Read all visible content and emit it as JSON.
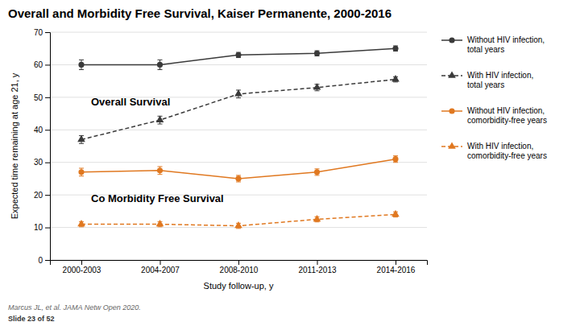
{
  "chart_data": {
    "type": "line",
    "title": "Overall and Morbidity Free Survival, Kaiser Permanente, 2000-2016",
    "xlabel": "Study follow-up, y",
    "ylabel": "Expected time remaining at age 21, y",
    "categories": [
      "2000-2003",
      "2004-2007",
      "2008-2010",
      "2011-2013",
      "2014-2016"
    ],
    "ylim": [
      0,
      70
    ],
    "yticks": [
      0,
      10,
      20,
      30,
      40,
      50,
      60,
      70
    ],
    "grid": true,
    "legend": "right",
    "series": [
      {
        "name": "Without HIV infection,\ntotal years",
        "color": "#3a3a3a",
        "marker": "circle",
        "line_style": "solid",
        "values": [
          60,
          60,
          63,
          63.5,
          65
        ],
        "yerr_lo": [
          1.5,
          1.5,
          0.8,
          0.8,
          0.8
        ],
        "yerr_hi": [
          1.5,
          1.5,
          0.8,
          0.8,
          0.8
        ]
      },
      {
        "name": "With HIV infection,\ntotal years",
        "color": "#3a3a3a",
        "marker": "triangle",
        "line_style": "dashed",
        "values": [
          37,
          43,
          51,
          53,
          55.5
        ],
        "yerr_lo": [
          1.2,
          1.2,
          1.2,
          1.0,
          0.8
        ],
        "yerr_hi": [
          1.2,
          1.2,
          1.2,
          1.0,
          0.8
        ]
      },
      {
        "name": "Without HIV infection,\ncomorbidity-free years",
        "color": "#e07820",
        "marker": "circle",
        "line_style": "solid",
        "values": [
          27,
          27.5,
          25,
          27,
          31
        ],
        "yerr_lo": [
          1.2,
          1.2,
          1.0,
          1.0,
          1.0
        ],
        "yerr_hi": [
          1.2,
          1.2,
          1.0,
          1.0,
          1.0
        ]
      },
      {
        "name": "With HIV infection,\ncomorbidity-free years",
        "color": "#e07820",
        "marker": "triangle",
        "line_style": "dashed",
        "values": [
          11,
          11,
          10.5,
          12.5,
          14
        ],
        "yerr_lo": [
          0.8,
          0.8,
          0.8,
          0.8,
          0.8
        ],
        "yerr_hi": [
          0.8,
          0.8,
          0.8,
          0.8,
          0.8
        ]
      }
    ],
    "annotations": [
      "Overall Survival",
      "Co Morbidity Free Survival"
    ],
    "source": "Marcus JL, et al. JAMA Netw Open 2020.",
    "footer": "Slide 23 of 52"
  }
}
